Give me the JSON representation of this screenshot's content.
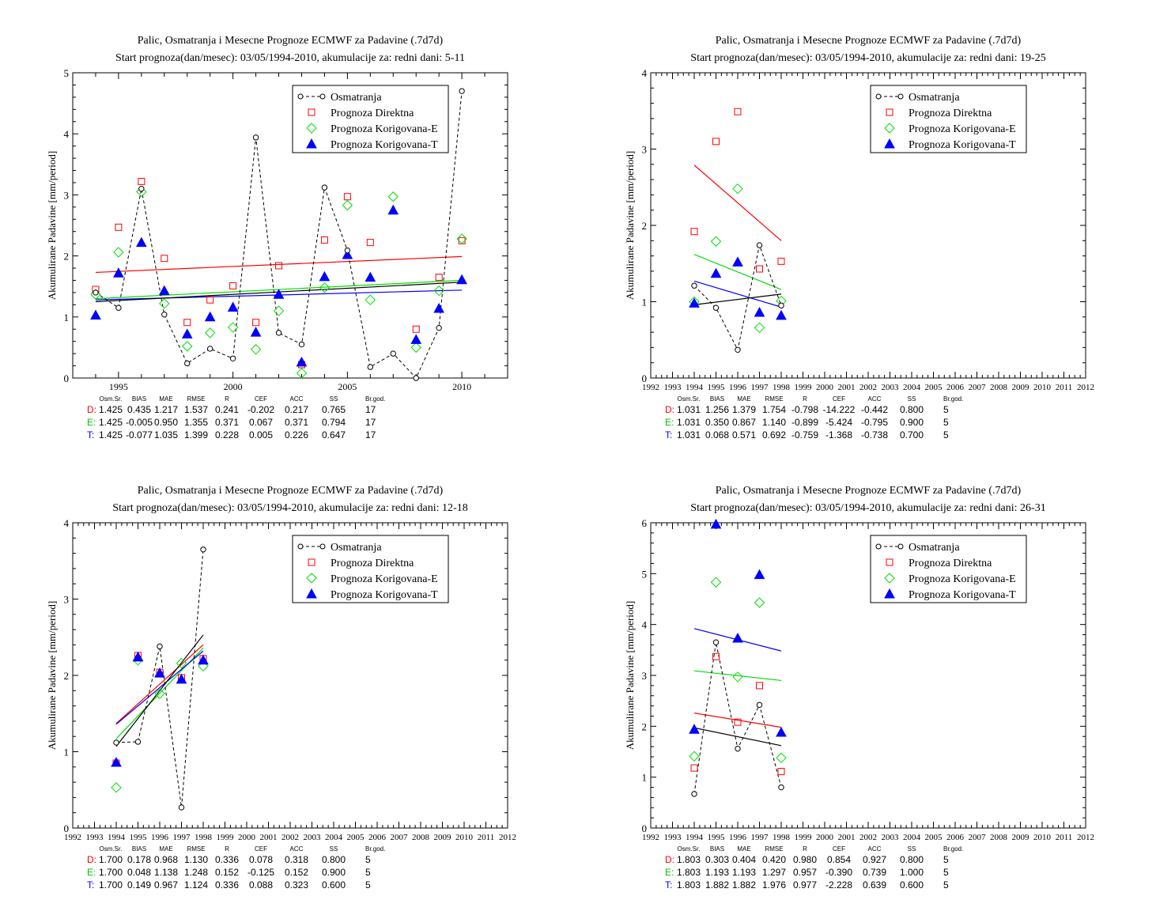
{
  "colors": {
    "obs": "#000000",
    "direct": "#ff0000",
    "corrE": "#00dd00",
    "corrT": "#0000ff"
  },
  "legend_labels": [
    "Osmatranja",
    "Prognoza Direktna",
    "Prognoza Korigovana-E",
    "Prognoza Korigovana-T"
  ],
  "ylabel": "Akumulirane Padavine [mm/period]",
  "stats_header": [
    "Osm.Sr.",
    "BIAS",
    "MAE",
    "RMSE",
    "R",
    "CEF",
    "ACC",
    "SS",
    "Br.god."
  ],
  "chart_data": [
    {
      "type": "scatter",
      "title": "Palic, Osmatranja i Mesecne Prognoze ECMWF za Padavine (.7d7d)",
      "subtitle": "Start prognoza(dan/mesec): 03/05/1994-2010, akumulacije za: redni dani: 5-11",
      "ylabel": "Akumulirane Padavine [mm/period]",
      "xlim": [
        1993,
        2012
      ],
      "ylim": [
        0,
        5
      ],
      "xticks_major": [
        1995,
        2000,
        2005,
        2010
      ],
      "xticks_minor_step": 1,
      "yticks": [
        0,
        1,
        2,
        3,
        4,
        5
      ],
      "x": [
        1994,
        1995,
        1996,
        1997,
        1998,
        1999,
        2000,
        2001,
        2002,
        2003,
        2004,
        2005,
        2006,
        2007,
        2008,
        2009,
        2010
      ],
      "series": [
        {
          "name": "Osmatranja",
          "values": [
            1.4,
            1.15,
            3.1,
            1.04,
            0.24,
            0.48,
            0.32,
            3.94,
            0.74,
            0.55,
            3.12,
            2.09,
            0.18,
            0.4,
            0.0,
            0.82,
            4.7
          ]
        },
        {
          "name": "Prognoza Direktna",
          "values": [
            1.45,
            2.47,
            3.22,
            1.96,
            0.91,
            1.28,
            1.51,
            0.91,
            1.84,
            0.22,
            2.26,
            2.97,
            2.22,
            null,
            0.8,
            1.65,
            2.25
          ]
        },
        {
          "name": "Prognoza Korigovana-E",
          "values": [
            1.37,
            2.06,
            3.05,
            1.22,
            0.52,
            0.74,
            0.83,
            0.47,
            1.1,
            0.08,
            1.48,
            2.83,
            1.28,
            2.97,
            0.5,
            1.43,
            2.28
          ]
        },
        {
          "name": "Prognoza Korigovana-T",
          "values": [
            1.03,
            1.72,
            2.22,
            1.43,
            0.72,
            1.0,
            1.16,
            0.75,
            1.37,
            0.26,
            1.66,
            2.02,
            1.65,
            2.75,
            0.63,
            1.14,
            1.61
          ]
        }
      ],
      "trendlines": {
        "obs": [
          1.25,
          1.57
        ],
        "direct": [
          1.73,
          1.99
        ],
        "corrE": [
          1.3,
          1.6
        ],
        "corrT": [
          1.28,
          1.44
        ]
      },
      "legend_placement": "top-right",
      "stats": [
        {
          "label": "D:",
          "values": [
            "1.425",
            "0.435",
            "1.217",
            "1.537",
            "0.241",
            "-0.202",
            "0.217",
            "0.765",
            "17"
          ]
        },
        {
          "label": "E:",
          "values": [
            "1.425",
            "-0.005",
            "0.950",
            "1.355",
            "0.371",
            "0.067",
            "0.371",
            "0.794",
            "17"
          ]
        },
        {
          "label": "T:",
          "values": [
            "1.425",
            "-0.077",
            "1.035",
            "1.399",
            "0.228",
            "0.005",
            "0.226",
            "0.647",
            "17"
          ]
        }
      ]
    },
    {
      "type": "scatter",
      "title": "Palic, Osmatranja i Mesecne Prognoze ECMWF za Padavine (.7d7d)",
      "subtitle": "Start prognoza(dan/mesec): 03/05/1994-2010, akumulacije za: redni dani: 19-25",
      "ylabel": "Akumulirane Padavine [mm/period]",
      "xlim": [
        1992,
        2012
      ],
      "ylim": [
        0,
        4
      ],
      "xticks_major": [
        1992,
        1993,
        1994,
        1995,
        1996,
        1997,
        1998,
        1999,
        2000,
        2001,
        2002,
        2003,
        2004,
        2005,
        2006,
        2007,
        2008,
        2009,
        2010,
        2011,
        2012
      ],
      "xticks_minor_step": 0.25,
      "yticks": [
        0,
        1,
        2,
        3,
        4
      ],
      "x": [
        1994,
        1995,
        1996,
        1997,
        1998
      ],
      "series": [
        {
          "name": "Osmatranja",
          "values": [
            1.21,
            0.92,
            0.37,
            1.74,
            0.95
          ]
        },
        {
          "name": "Prognoza Direktna",
          "values": [
            1.92,
            3.1,
            3.49,
            1.43,
            1.53
          ]
        },
        {
          "name": "Prognoza Korigovana-E",
          "values": [
            1.0,
            1.79,
            2.48,
            0.66,
            1.01
          ]
        },
        {
          "name": "Prognoza Korigovana-T",
          "values": [
            0.98,
            1.37,
            1.52,
            0.86,
            0.82
          ]
        }
      ],
      "trendlines": {
        "obs": [
          0.96,
          1.1
        ],
        "direct": [
          2.79,
          1.8
        ],
        "corrE": [
          1.62,
          1.16
        ],
        "corrT": [
          1.27,
          0.93
        ]
      },
      "legend_placement": "top-right",
      "stats": [
        {
          "label": "D:",
          "values": [
            "1.031",
            "1.256",
            "1.379",
            "1.754",
            "-0.798",
            "-14.222",
            "-0.442",
            "0.800",
            "5"
          ]
        },
        {
          "label": "E:",
          "values": [
            "1.031",
            "0.350",
            "0.867",
            "1.140",
            "-0.899",
            "-5.424",
            "-0.795",
            "0.900",
            "5"
          ]
        },
        {
          "label": "T:",
          "values": [
            "1.031",
            "0.068",
            "0.571",
            "0.692",
            "-0.759",
            "-1.368",
            "-0.738",
            "0.700",
            "5"
          ]
        }
      ]
    },
    {
      "type": "scatter",
      "title": "Palic, Osmatranja i Mesecne Prognoze ECMWF za Padavine (.7d7d)",
      "subtitle": "Start prognoza(dan/mesec): 03/05/1994-2010, akumulacije za: redni dani: 12-18",
      "ylabel": "Akumulirane Padavine [mm/period]",
      "xlim": [
        1992,
        2012
      ],
      "ylim": [
        0,
        4
      ],
      "xticks_major": [
        1992,
        1993,
        1994,
        1995,
        1996,
        1997,
        1998,
        1999,
        2000,
        2001,
        2002,
        2003,
        2004,
        2005,
        2006,
        2007,
        2008,
        2009,
        2010,
        2011,
        2012
      ],
      "xticks_minor_step": 0.25,
      "yticks": [
        0,
        1,
        2,
        3,
        4
      ],
      "x": [
        1994,
        1995,
        1996,
        1997,
        1998
      ],
      "series": [
        {
          "name": "Osmatranja",
          "values": [
            1.12,
            1.13,
            2.38,
            0.27,
            3.65
          ]
        },
        {
          "name": "Prognoza Direktna",
          "values": [
            0.85,
            2.26,
            2.04,
            1.97,
            2.22
          ]
        },
        {
          "name": "Prognoza Korigovana-E",
          "values": [
            0.53,
            2.2,
            1.76,
            2.16,
            2.12
          ]
        },
        {
          "name": "Prognoza Korigovana-T",
          "values": [
            0.86,
            2.24,
            2.03,
            1.95,
            2.2
          ]
        }
      ],
      "trendlines": {
        "obs": [
          1.07,
          2.53
        ],
        "direct": [
          1.37,
          2.4
        ],
        "corrE": [
          1.17,
          2.36
        ],
        "corrT": [
          1.36,
          2.32
        ]
      },
      "legend_placement": "top-right",
      "stats": [
        {
          "label": "D:",
          "values": [
            "1.700",
            "0.178",
            "0.968",
            "1.130",
            "0.336",
            "0.078",
            "0.318",
            "0.800",
            "5"
          ]
        },
        {
          "label": "E:",
          "values": [
            "1.700",
            "0.048",
            "1.138",
            "1.248",
            "0.152",
            "-0.125",
            "0.152",
            "0.900",
            "5"
          ]
        },
        {
          "label": "T:",
          "values": [
            "1.700",
            "0.149",
            "0.967",
            "1.124",
            "0.336",
            "0.088",
            "0.323",
            "0.600",
            "5"
          ]
        }
      ]
    },
    {
      "type": "scatter",
      "title": "Palic, Osmatranja i Mesecne Prognoze ECMWF za Padavine (.7d7d)",
      "subtitle": "Start prognoza(dan/mesec): 03/05/1994-2010, akumulacije za: redni dani: 26-31",
      "ylabel": "Akumulirane Padavine [mm/period]",
      "xlim": [
        1992,
        2012
      ],
      "ylim": [
        0,
        6
      ],
      "xticks_major": [
        1992,
        1993,
        1994,
        1995,
        1996,
        1997,
        1998,
        1999,
        2000,
        2001,
        2002,
        2003,
        2004,
        2005,
        2006,
        2007,
        2008,
        2009,
        2010,
        2011,
        2012
      ],
      "xticks_minor_step": 0.25,
      "yticks": [
        0,
        1,
        2,
        3,
        4,
        5,
        6
      ],
      "x": [
        1994,
        1995,
        1996,
        1997,
        1998
      ],
      "series": [
        {
          "name": "Osmatranja",
          "values": [
            0.67,
            3.65,
            1.56,
            2.42,
            0.8
          ]
        },
        {
          "name": "Prognoza Direktna",
          "values": [
            1.18,
            3.37,
            2.08,
            2.8,
            1.11
          ]
        },
        {
          "name": "Prognoza Korigovana-E",
          "values": [
            1.41,
            4.83,
            2.97,
            4.43,
            1.38
          ]
        },
        {
          "name": "Prognoza Korigovana-T",
          "values": [
            1.94,
            5.97,
            3.73,
            4.98,
            1.88
          ]
        }
      ],
      "trendlines": {
        "obs": [
          1.97,
          1.62
        ],
        "direct": [
          2.26,
          1.98
        ],
        "corrE": [
          3.09,
          2.9
        ],
        "corrT": [
          3.92,
          3.48
        ]
      },
      "legend_placement": "top-right",
      "stats": [
        {
          "label": "D:",
          "values": [
            "1.803",
            "0.303",
            "0.404",
            "0.420",
            "0.980",
            "0.854",
            "0.927",
            "0.800",
            "5"
          ]
        },
        {
          "label": "E:",
          "values": [
            "1.803",
            "1.193",
            "1.193",
            "1.297",
            "0.957",
            "-0.390",
            "0.739",
            "1.000",
            "5"
          ]
        },
        {
          "label": "T:",
          "values": [
            "1.803",
            "1.882",
            "1.882",
            "1.976",
            "0.977",
            "-2.228",
            "0.639",
            "0.600",
            "5"
          ]
        }
      ]
    }
  ]
}
